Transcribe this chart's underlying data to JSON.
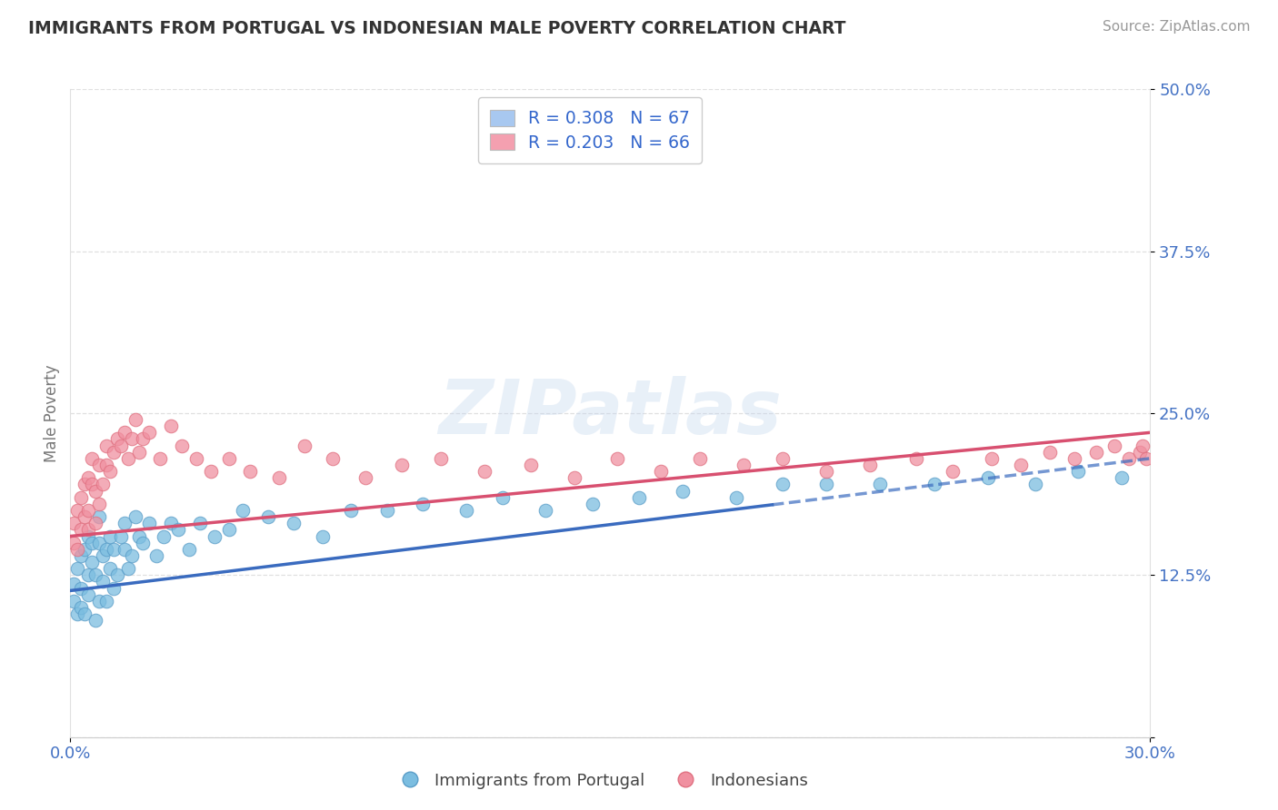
{
  "title": "IMMIGRANTS FROM PORTUGAL VS INDONESIAN MALE POVERTY CORRELATION CHART",
  "source": "Source: ZipAtlas.com",
  "xlim": [
    0.0,
    0.3
  ],
  "ylim": [
    0.0,
    0.5
  ],
  "yticks": [
    0.0,
    0.125,
    0.25,
    0.375,
    0.5
  ],
  "ytick_labels": [
    "",
    "12.5%",
    "25.0%",
    "37.5%",
    "50.0%"
  ],
  "xtick_vals": [
    0.0,
    0.3
  ],
  "xtick_labels": [
    "0.0%",
    "30.0%"
  ],
  "series1_label": "Immigrants from Portugal",
  "series2_label": "Indonesians",
  "series1_color": "#7bbde0",
  "series2_color": "#f090a0",
  "series1_edge": "#5a9dc8",
  "series2_edge": "#e07080",
  "trend1_color": "#3a6bbf",
  "trend2_color": "#d85070",
  "axis_tick_color": "#4472c4",
  "ylabel": "Male Poverty",
  "legend1_text": "R = 0.308   N = 67",
  "legend2_text": "R = 0.203   N = 66",
  "legend1_patch_color": "#a8c8f0",
  "legend2_patch_color": "#f4a0b0",
  "watermark": "ZIPatlas",
  "title_color": "#333333",
  "source_color": "#999999",
  "grid_color": "#e0e0e0",
  "trend1_x0": 0.0,
  "trend1_y0": 0.113,
  "trend1_x1": 0.3,
  "trend1_y1": 0.215,
  "trend2_x0": 0.0,
  "trend2_y0": 0.155,
  "trend2_x1": 0.3,
  "trend2_y1": 0.235,
  "trend_dashed_start": 0.195,
  "series1_x": [
    0.001,
    0.001,
    0.002,
    0.002,
    0.003,
    0.003,
    0.003,
    0.004,
    0.004,
    0.005,
    0.005,
    0.005,
    0.006,
    0.006,
    0.007,
    0.007,
    0.008,
    0.008,
    0.008,
    0.009,
    0.009,
    0.01,
    0.01,
    0.011,
    0.011,
    0.012,
    0.012,
    0.013,
    0.014,
    0.015,
    0.015,
    0.016,
    0.017,
    0.018,
    0.019,
    0.02,
    0.022,
    0.024,
    0.026,
    0.028,
    0.03,
    0.033,
    0.036,
    0.04,
    0.044,
    0.048,
    0.055,
    0.062,
    0.07,
    0.078,
    0.088,
    0.098,
    0.11,
    0.12,
    0.132,
    0.145,
    0.158,
    0.17,
    0.185,
    0.198,
    0.21,
    0.225,
    0.24,
    0.255,
    0.268,
    0.28,
    0.292
  ],
  "series1_y": [
    0.105,
    0.118,
    0.095,
    0.13,
    0.1,
    0.115,
    0.14,
    0.145,
    0.095,
    0.125,
    0.11,
    0.155,
    0.135,
    0.15,
    0.09,
    0.125,
    0.105,
    0.15,
    0.17,
    0.12,
    0.14,
    0.105,
    0.145,
    0.13,
    0.155,
    0.115,
    0.145,
    0.125,
    0.155,
    0.145,
    0.165,
    0.13,
    0.14,
    0.17,
    0.155,
    0.15,
    0.165,
    0.14,
    0.155,
    0.165,
    0.16,
    0.145,
    0.165,
    0.155,
    0.16,
    0.175,
    0.17,
    0.165,
    0.155,
    0.175,
    0.175,
    0.18,
    0.175,
    0.185,
    0.175,
    0.18,
    0.185,
    0.19,
    0.185,
    0.195,
    0.195,
    0.195,
    0.195,
    0.2,
    0.195,
    0.205,
    0.2
  ],
  "series2_x": [
    0.001,
    0.001,
    0.002,
    0.002,
    0.003,
    0.003,
    0.004,
    0.004,
    0.005,
    0.005,
    0.005,
    0.006,
    0.006,
    0.007,
    0.007,
    0.008,
    0.008,
    0.009,
    0.01,
    0.01,
    0.011,
    0.012,
    0.013,
    0.014,
    0.015,
    0.016,
    0.017,
    0.018,
    0.019,
    0.02,
    0.022,
    0.025,
    0.028,
    0.031,
    0.035,
    0.039,
    0.044,
    0.05,
    0.058,
    0.065,
    0.073,
    0.082,
    0.092,
    0.103,
    0.115,
    0.128,
    0.14,
    0.152,
    0.164,
    0.175,
    0.187,
    0.198,
    0.21,
    0.222,
    0.235,
    0.245,
    0.256,
    0.264,
    0.272,
    0.279,
    0.285,
    0.29,
    0.294,
    0.297,
    0.298,
    0.299
  ],
  "series2_y": [
    0.15,
    0.165,
    0.145,
    0.175,
    0.16,
    0.185,
    0.17,
    0.195,
    0.175,
    0.2,
    0.16,
    0.195,
    0.215,
    0.165,
    0.19,
    0.18,
    0.21,
    0.195,
    0.21,
    0.225,
    0.205,
    0.22,
    0.23,
    0.225,
    0.235,
    0.215,
    0.23,
    0.245,
    0.22,
    0.23,
    0.235,
    0.215,
    0.24,
    0.225,
    0.215,
    0.205,
    0.215,
    0.205,
    0.2,
    0.225,
    0.215,
    0.2,
    0.21,
    0.215,
    0.205,
    0.21,
    0.2,
    0.215,
    0.205,
    0.215,
    0.21,
    0.215,
    0.205,
    0.21,
    0.215,
    0.205,
    0.215,
    0.21,
    0.22,
    0.215,
    0.22,
    0.225,
    0.215,
    0.22,
    0.225,
    0.215
  ]
}
